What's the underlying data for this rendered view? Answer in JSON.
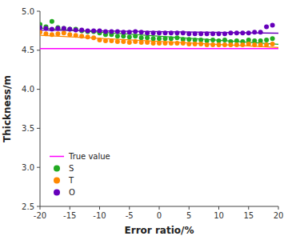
{
  "chart_data": {
    "type": "scatter",
    "x_label": "Error ratio/%",
    "y_label": "Thickness/m",
    "xlim": [
      -20,
      20
    ],
    "ylim": [
      2.5,
      5.0
    ],
    "xticks": [
      -20,
      -15,
      -10,
      -5,
      0,
      5,
      10,
      15,
      20
    ],
    "yticks": [
      2.5,
      {
        "value": 3.0,
        "label": "3.0"
      },
      3.5,
      {
        "value": 4.0,
        "label": "4.0"
      },
      4.5,
      {
        "value": 5.0,
        "label": "5.0"
      }
    ],
    "grid": false,
    "legend": "lower-left",
    "series": [
      {
        "name": "True value",
        "type": "hline",
        "color": "#ff00ff",
        "values": [
          4.52
        ]
      },
      {
        "name": "S",
        "type": "scatter",
        "color": "#22aa22",
        "x": [
          -20,
          -19,
          -18,
          -17,
          -16,
          -15,
          -14,
          -13,
          -12,
          -11,
          -10,
          -9,
          -8,
          -7,
          -6,
          -5,
          -4,
          -3,
          -2,
          -1,
          0,
          1,
          2,
          3,
          4,
          5,
          6,
          7,
          8,
          9,
          10,
          11,
          12,
          13,
          14,
          15,
          16,
          17,
          18,
          19
        ],
        "values": [
          4.83,
          4.8,
          4.87,
          4.79,
          4.78,
          4.77,
          4.77,
          4.75,
          4.74,
          4.74,
          4.72,
          4.7,
          4.7,
          4.68,
          4.68,
          4.67,
          4.68,
          4.66,
          4.66,
          4.65,
          4.65,
          4.65,
          4.65,
          4.66,
          4.64,
          4.64,
          4.63,
          4.63,
          4.62,
          4.63,
          4.62,
          4.63,
          4.61,
          4.62,
          4.61,
          4.63,
          4.62,
          4.62,
          4.63,
          4.65
        ]
      },
      {
        "name": "T",
        "type": "scatter",
        "color": "#ff8800",
        "x": [
          -20,
          -19,
          -18,
          -17,
          -16,
          -15,
          -14,
          -13,
          -12,
          -11,
          -10,
          -9,
          -8,
          -7,
          -6,
          -5,
          -4,
          -3,
          -2,
          -1,
          0,
          1,
          2,
          3,
          4,
          5,
          6,
          7,
          8,
          9,
          10,
          11,
          12,
          13,
          14,
          15,
          16,
          17,
          18,
          19
        ],
        "values": [
          4.73,
          4.71,
          4.7,
          4.71,
          4.72,
          4.7,
          4.69,
          4.68,
          4.67,
          4.66,
          4.63,
          4.62,
          4.62,
          4.61,
          4.61,
          4.6,
          4.61,
          4.6,
          4.6,
          4.59,
          4.59,
          4.59,
          4.59,
          4.59,
          4.59,
          4.58,
          4.58,
          4.58,
          4.57,
          4.57,
          4.57,
          4.57,
          4.57,
          4.57,
          4.57,
          4.58,
          4.57,
          4.57,
          4.57,
          4.58
        ]
      },
      {
        "name": "O",
        "type": "scatter",
        "color": "#6600bb",
        "x": [
          -20,
          -19,
          -18,
          -17,
          -16,
          -15,
          -14,
          -13,
          -12,
          -11,
          -10,
          -9,
          -8,
          -7,
          -6,
          -5,
          -4,
          -3,
          -2,
          -1,
          0,
          1,
          2,
          3,
          4,
          5,
          6,
          7,
          8,
          9,
          10,
          11,
          12,
          13,
          14,
          15,
          16,
          17,
          18,
          19
        ],
        "values": [
          4.79,
          4.78,
          4.77,
          4.78,
          4.78,
          4.77,
          4.76,
          4.76,
          4.75,
          4.75,
          4.75,
          4.74,
          4.74,
          4.74,
          4.73,
          4.73,
          4.74,
          4.73,
          4.72,
          4.72,
          4.72,
          4.72,
          4.72,
          4.72,
          4.72,
          4.71,
          4.71,
          4.71,
          4.71,
          4.71,
          4.71,
          4.71,
          4.72,
          4.72,
          4.72,
          4.72,
          4.73,
          4.73,
          4.8,
          4.82
        ]
      },
      {
        "type": "line",
        "color": "#22aa22",
        "x": [
          -20,
          20
        ],
        "values": [
          4.7831,
          4.5757
        ]
      },
      {
        "type": "line",
        "color": "#ff8800",
        "x": [
          -20,
          20
        ],
        "values": [
          4.6923,
          4.5343
        ]
      },
      {
        "type": "line",
        "color": "#6600bb",
        "x": [
          -20,
          20
        ],
        "values": [
          4.7589,
          4.718
        ]
      }
    ]
  }
}
